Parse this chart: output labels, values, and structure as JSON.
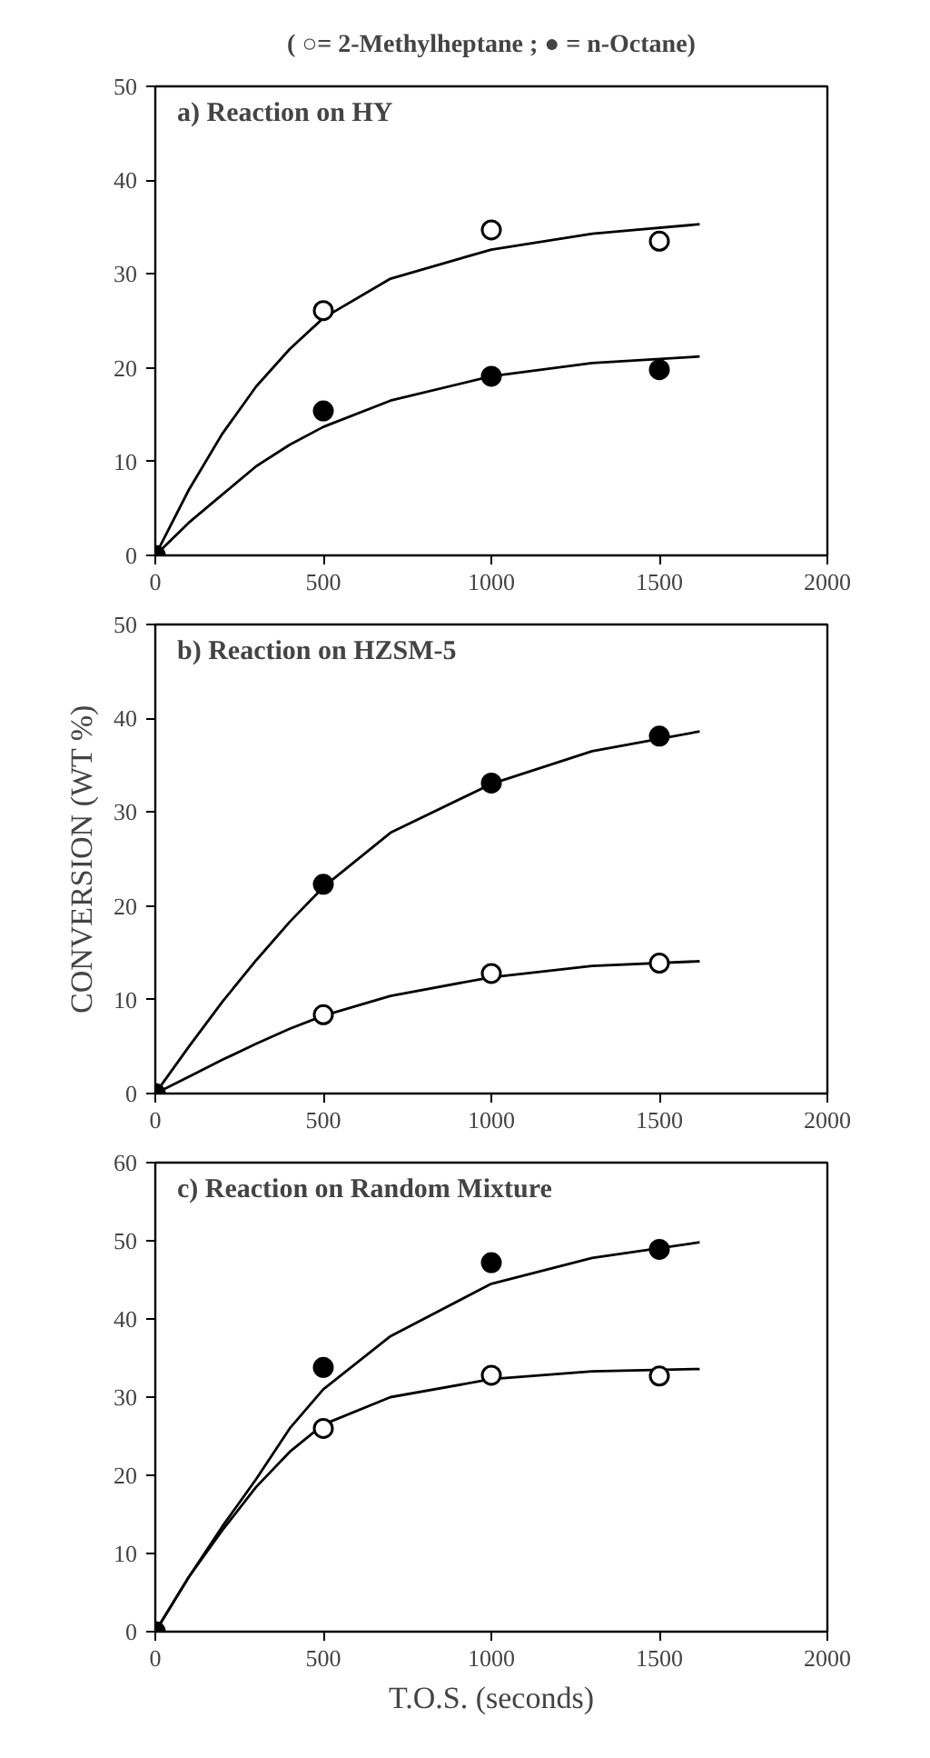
{
  "chart_data": [
    {
      "type": "scatter",
      "title": "a) Reaction on HY",
      "annotations": [
        "( ○= 2-Methylheptane ; ● = n-Octane)"
      ],
      "x": [
        0,
        500,
        1000,
        1500
      ],
      "xlim": [
        0,
        2000
      ],
      "xticks": [
        0,
        500,
        1000,
        1500,
        2000
      ],
      "ylim": [
        0,
        50
      ],
      "yticks": [
        0,
        10,
        20,
        30,
        40,
        50
      ],
      "series": [
        {
          "type": "line",
          "color": "#000000",
          "x": [
            0,
            100,
            200,
            300,
            400,
            500,
            700,
            1000,
            1300,
            1620
          ],
          "values": [
            0,
            7,
            13,
            18,
            22,
            25.3,
            29.5,
            32.6,
            34.3,
            35.3
          ]
        },
        {
          "type": "line",
          "color": "#000000",
          "x": [
            0,
            100,
            200,
            300,
            400,
            500,
            700,
            1000,
            1300,
            1620
          ],
          "values": [
            0,
            3.5,
            6.5,
            9.5,
            11.8,
            13.7,
            16.5,
            19.1,
            20.5,
            21.2
          ]
        },
        {
          "color": "#ffffff",
          "marker": "circle",
          "x": [
            500,
            1000,
            1500
          ],
          "values": [
            26.1,
            34.7,
            33.5
          ]
        },
        {
          "color": "#000000",
          "marker": "circle",
          "values": [
            0,
            15.4,
            19.1,
            19.8
          ]
        }
      ]
    },
    {
      "type": "scatter",
      "title": "b) Reaction on HZSM-5",
      "ylabel": "CONVERSION (WT %)",
      "x": [
        0,
        500,
        1000,
        1500
      ],
      "xlim": [
        0,
        2000
      ],
      "xticks": [
        0,
        500,
        1000,
        1500,
        2000
      ],
      "ylim": [
        0,
        50
      ],
      "yticks": [
        0,
        10,
        20,
        30,
        40,
        50
      ],
      "series": [
        {
          "type": "line",
          "color": "#000000",
          "x": [
            0,
            100,
            200,
            300,
            400,
            500,
            700,
            1000,
            1300,
            1620
          ],
          "values": [
            0,
            5,
            9.8,
            14.2,
            18.3,
            22,
            27.8,
            33,
            36.5,
            38.6
          ]
        },
        {
          "type": "line",
          "color": "#000000",
          "x": [
            0,
            100,
            200,
            300,
            400,
            500,
            700,
            1000,
            1300,
            1620
          ],
          "values": [
            0,
            1.8,
            3.6,
            5.3,
            6.9,
            8.3,
            10.4,
            12.4,
            13.6,
            14.1
          ]
        },
        {
          "color": "#ffffff",
          "marker": "circle",
          "x": [
            500,
            1000,
            1500
          ],
          "values": [
            8.4,
            12.8,
            13.9
          ]
        },
        {
          "color": "#000000",
          "marker": "circle",
          "values": [
            0,
            22.3,
            33.1,
            38.1
          ]
        }
      ]
    },
    {
      "type": "scatter",
      "title": "c) Reaction on Random Mixture",
      "xlabel": "T.O.S. (seconds)",
      "x": [
        0,
        500,
        1000,
        1500
      ],
      "xlim": [
        0,
        2000
      ],
      "xticks": [
        0,
        500,
        1000,
        1500,
        2000
      ],
      "ylim": [
        0,
        60
      ],
      "yticks": [
        0,
        10,
        20,
        30,
        40,
        50,
        60
      ],
      "series": [
        {
          "type": "line",
          "color": "#000000",
          "x": [
            0,
            100,
            200,
            300,
            400,
            500,
            700,
            1000,
            1300,
            1620
          ],
          "values": [
            0,
            7,
            13.5,
            19.5,
            26,
            31,
            37.8,
            44.5,
            47.8,
            49.8
          ]
        },
        {
          "type": "line",
          "color": "#000000",
          "x": [
            0,
            100,
            200,
            300,
            400,
            500,
            700,
            1000,
            1300,
            1620
          ],
          "values": [
            0,
            7,
            13,
            18.5,
            23,
            26.5,
            30,
            32.3,
            33.3,
            33.6
          ]
        },
        {
          "color": "#ffffff",
          "marker": "circle",
          "x": [
            500,
            1000,
            1500
          ],
          "values": [
            26.0,
            32.8,
            32.7
          ]
        },
        {
          "color": "#000000",
          "marker": "circle",
          "values": [
            0,
            33.8,
            47.2,
            48.9
          ]
        }
      ]
    }
  ]
}
